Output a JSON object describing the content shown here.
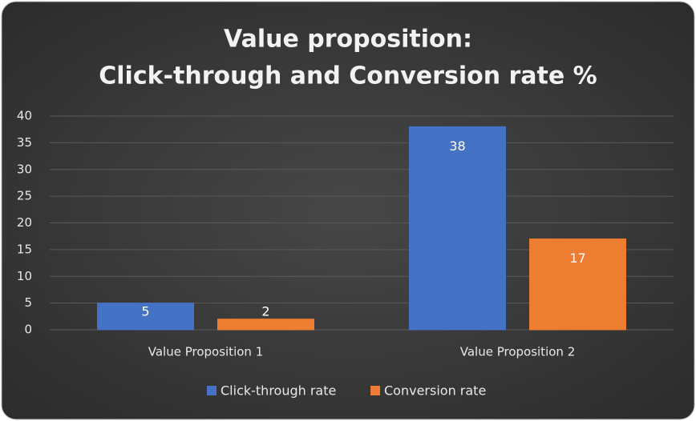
{
  "chart_data": {
    "type": "bar",
    "title": [
      "Value proposition:",
      "Click-through and Conversion rate %"
    ],
    "categories": [
      "Value Proposition 1",
      "Value Proposition 2"
    ],
    "series": [
      {
        "name": "Click-through rate",
        "color": "#4472c4",
        "values": [
          5,
          38
        ]
      },
      {
        "name": "Conversion rate",
        "color": "#ed7d31",
        "values": [
          2,
          17
        ]
      }
    ],
    "ylim": [
      0,
      40
    ],
    "yticks": [
      0,
      5,
      10,
      15,
      20,
      25,
      30,
      35,
      40
    ],
    "grid": true,
    "legend": "bottom"
  }
}
